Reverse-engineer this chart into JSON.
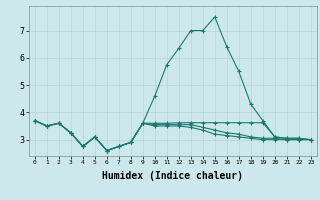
{
  "bg_color": "#cde8ec",
  "grid_color": "#b8d4d8",
  "line_color": "#1a7a6e",
  "xlabel": "Humidex (Indice chaleur)",
  "xlabel_fontsize": 7,
  "yticks": [
    3,
    4,
    5,
    6,
    7
  ],
  "xlim": [
    -0.5,
    23.5
  ],
  "ylim": [
    2.4,
    7.9
  ],
  "figsize": [
    3.2,
    2.0
  ],
  "dpi": 100,
  "series": [
    [
      3.7,
      3.5,
      3.6,
      3.25,
      2.75,
      3.1,
      2.6,
      2.75,
      2.9,
      3.6,
      4.6,
      5.75,
      6.35,
      7.0,
      7.0,
      7.5,
      6.4,
      5.5,
      4.3,
      3.7,
      3.1,
      3.05,
      3.05,
      3.0
    ],
    [
      3.7,
      3.5,
      3.6,
      3.25,
      2.75,
      3.1,
      2.6,
      2.75,
      2.9,
      3.6,
      3.6,
      3.6,
      3.62,
      3.62,
      3.62,
      3.62,
      3.62,
      3.62,
      3.62,
      3.62,
      3.1,
      3.05,
      3.05,
      3.0
    ],
    [
      3.7,
      3.5,
      3.6,
      3.25,
      2.75,
      3.1,
      2.6,
      2.75,
      2.9,
      3.6,
      3.55,
      3.55,
      3.55,
      3.55,
      3.45,
      3.35,
      3.25,
      3.2,
      3.1,
      3.05,
      3.05,
      3.0,
      3.0,
      3.0
    ],
    [
      3.7,
      3.5,
      3.6,
      3.25,
      2.75,
      3.1,
      2.6,
      2.75,
      2.9,
      3.6,
      3.5,
      3.5,
      3.5,
      3.45,
      3.35,
      3.2,
      3.15,
      3.1,
      3.05,
      3.0,
      3.0,
      3.0,
      3.0,
      3.0
    ]
  ],
  "line_styles": [
    "-",
    "-",
    "-",
    "-"
  ],
  "marker": "+",
  "markersize": 3,
  "linewidth": 0.8
}
